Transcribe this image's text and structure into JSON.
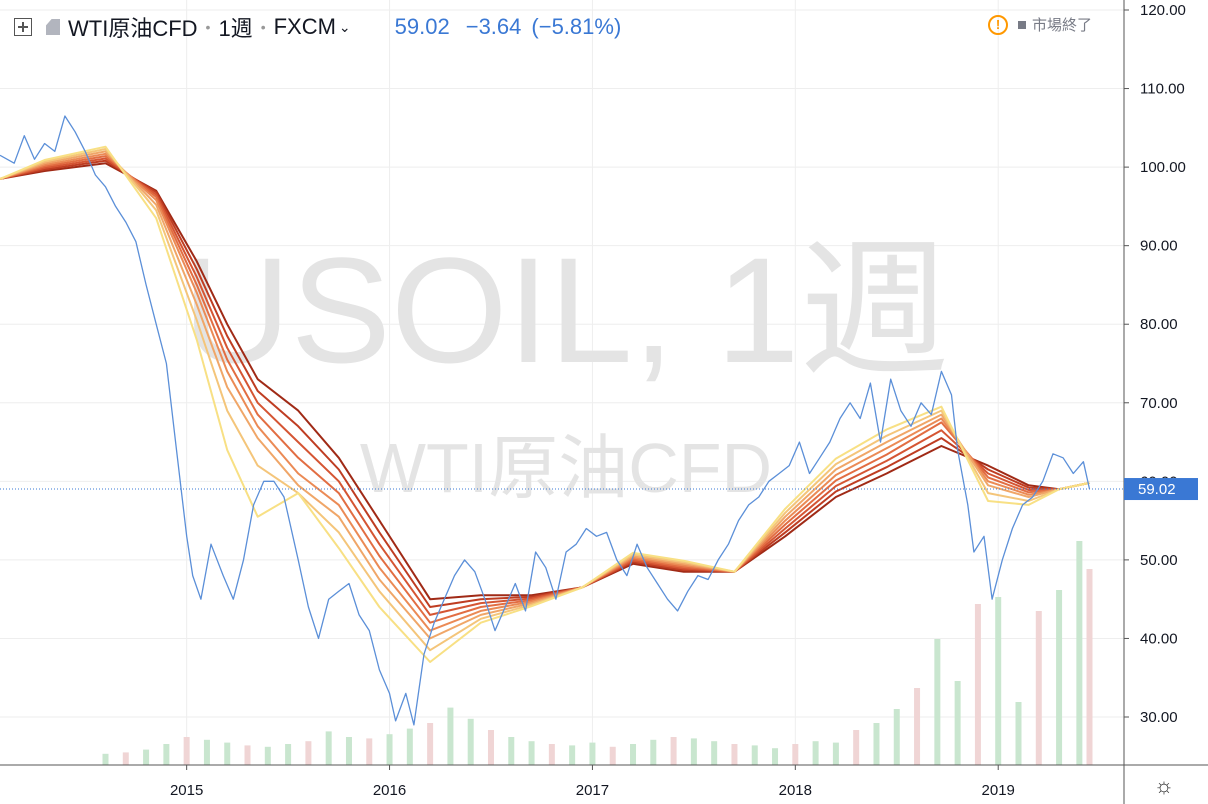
{
  "header": {
    "symbol_name": "WTI原油CFD",
    "interval": "1週",
    "exchange": "FXCM",
    "last_price": "59.02",
    "change": "−3.64",
    "change_percent": "(−5.81%)"
  },
  "status": {
    "text": "市場終了"
  },
  "watermark": {
    "main": "USOIL, 1週",
    "sub": "WTI原油CFD"
  },
  "colors": {
    "price_line": "#5b8fd8",
    "accent": "#3a78d4",
    "ribbon": [
      "#a02a16",
      "#bf3d22",
      "#d55533",
      "#e26d42",
      "#eb8a55",
      "#f0a668",
      "#f4c57a",
      "#f8e084"
    ],
    "volume_up": "#c9e6cf",
    "volume_down": "#f0d5d5"
  },
  "chart_data": {
    "type": "line",
    "x_tick_labels": [
      "2015",
      "2016",
      "2017",
      "2018",
      "2019"
    ],
    "y_tick_labels": [
      "120.00",
      "110.00",
      "100.00",
      "90.00",
      "80.00",
      "70.00",
      "60.00",
      "50.00",
      "40.00",
      "30.00"
    ],
    "ylim": [
      23,
      120
    ],
    "xlim": [
      2014.08,
      2019.62
    ],
    "last_value_label": "59.02",
    "price": [
      [
        2014.08,
        101.5
      ],
      [
        2014.15,
        100.5
      ],
      [
        2014.2,
        104
      ],
      [
        2014.25,
        101
      ],
      [
        2014.3,
        103
      ],
      [
        2014.35,
        102
      ],
      [
        2014.4,
        106.5
      ],
      [
        2014.45,
        104.5
      ],
      [
        2014.5,
        102
      ],
      [
        2014.55,
        99
      ],
      [
        2014.6,
        97.5
      ],
      [
        2014.65,
        95
      ],
      [
        2014.7,
        93
      ],
      [
        2014.75,
        90.5
      ],
      [
        2014.8,
        85
      ],
      [
        2014.85,
        80
      ],
      [
        2014.9,
        75
      ],
      [
        2014.95,
        64
      ],
      [
        2015.0,
        53
      ],
      [
        2015.03,
        48
      ],
      [
        2015.07,
        45
      ],
      [
        2015.12,
        52
      ],
      [
        2015.18,
        48
      ],
      [
        2015.23,
        45
      ],
      [
        2015.28,
        50
      ],
      [
        2015.33,
        57
      ],
      [
        2015.38,
        60
      ],
      [
        2015.43,
        60
      ],
      [
        2015.48,
        58
      ],
      [
        2015.55,
        50
      ],
      [
        2015.6,
        44
      ],
      [
        2015.65,
        40
      ],
      [
        2015.7,
        45
      ],
      [
        2015.75,
        46
      ],
      [
        2015.8,
        47
      ],
      [
        2015.85,
        43
      ],
      [
        2015.9,
        41
      ],
      [
        2015.95,
        36
      ],
      [
        2016.0,
        33
      ],
      [
        2016.03,
        29.5
      ],
      [
        2016.08,
        33
      ],
      [
        2016.12,
        29
      ],
      [
        2016.17,
        38
      ],
      [
        2016.22,
        42
      ],
      [
        2016.27,
        45
      ],
      [
        2016.32,
        48
      ],
      [
        2016.37,
        50
      ],
      [
        2016.42,
        48.5
      ],
      [
        2016.47,
        45
      ],
      [
        2016.52,
        41
      ],
      [
        2016.57,
        44
      ],
      [
        2016.62,
        47
      ],
      [
        2016.67,
        43.5
      ],
      [
        2016.72,
        51
      ],
      [
        2016.77,
        49
      ],
      [
        2016.82,
        45
      ],
      [
        2016.87,
        51
      ],
      [
        2016.92,
        52
      ],
      [
        2016.97,
        54
      ],
      [
        2017.02,
        53
      ],
      [
        2017.07,
        53.5
      ],
      [
        2017.12,
        50
      ],
      [
        2017.17,
        48
      ],
      [
        2017.22,
        52
      ],
      [
        2017.27,
        49
      ],
      [
        2017.32,
        47
      ],
      [
        2017.37,
        45
      ],
      [
        2017.42,
        43.5
      ],
      [
        2017.47,
        46
      ],
      [
        2017.52,
        48
      ],
      [
        2017.57,
        47.5
      ],
      [
        2017.62,
        50
      ],
      [
        2017.67,
        52
      ],
      [
        2017.72,
        55
      ],
      [
        2017.77,
        57
      ],
      [
        2017.82,
        58
      ],
      [
        2017.87,
        60
      ],
      [
        2017.92,
        61
      ],
      [
        2017.97,
        62
      ],
      [
        2018.02,
        65
      ],
      [
        2018.07,
        61
      ],
      [
        2018.12,
        63
      ],
      [
        2018.17,
        65
      ],
      [
        2018.22,
        68
      ],
      [
        2018.27,
        70
      ],
      [
        2018.32,
        68
      ],
      [
        2018.37,
        72.5
      ],
      [
        2018.42,
        65
      ],
      [
        2018.47,
        73
      ],
      [
        2018.52,
        69
      ],
      [
        2018.57,
        67
      ],
      [
        2018.62,
        70
      ],
      [
        2018.67,
        68.5
      ],
      [
        2018.72,
        74
      ],
      [
        2018.77,
        71
      ],
      [
        2018.8,
        64
      ],
      [
        2018.85,
        57
      ],
      [
        2018.88,
        51
      ],
      [
        2018.93,
        53
      ],
      [
        2018.97,
        45
      ],
      [
        2019.02,
        50
      ],
      [
        2019.07,
        54
      ],
      [
        2019.12,
        57
      ],
      [
        2019.17,
        58
      ],
      [
        2019.22,
        60
      ],
      [
        2019.27,
        63.5
      ],
      [
        2019.32,
        63
      ],
      [
        2019.37,
        61
      ],
      [
        2019.42,
        62.5
      ],
      [
        2019.45,
        59.02
      ]
    ],
    "ribbon_ma": [
      [
        [
          2014.08,
          98.5
        ],
        [
          2014.3,
          99.5
        ],
        [
          2014.6,
          100.5
        ],
        [
          2014.85,
          97
        ],
        [
          2015.05,
          88
        ],
        [
          2015.2,
          80
        ],
        [
          2015.35,
          73
        ],
        [
          2015.55,
          69
        ],
        [
          2015.75,
          63
        ],
        [
          2015.95,
          55
        ],
        [
          2016.2,
          45
        ],
        [
          2016.45,
          45.5
        ],
        [
          2016.7,
          45.5
        ],
        [
          2016.95,
          46.5
        ],
        [
          2017.2,
          49.5
        ],
        [
          2017.45,
          48.5
        ],
        [
          2017.7,
          48.5
        ],
        [
          2017.95,
          53
        ],
        [
          2018.2,
          58
        ],
        [
          2018.45,
          61
        ],
        [
          2018.72,
          64.5
        ],
        [
          2018.95,
          62
        ],
        [
          2019.15,
          59.5
        ],
        [
          2019.3,
          59
        ],
        [
          2019.45,
          59.8
        ]
      ],
      [
        [
          2014.08,
          98.5
        ],
        [
          2014.3,
          99.7
        ],
        [
          2014.6,
          100.8
        ],
        [
          2014.85,
          96.8
        ],
        [
          2015.05,
          87
        ],
        [
          2015.2,
          78.5
        ],
        [
          2015.35,
          71.5
        ],
        [
          2015.55,
          67
        ],
        [
          2015.75,
          61.5
        ],
        [
          2015.95,
          53.5
        ],
        [
          2016.2,
          44
        ],
        [
          2016.45,
          45
        ],
        [
          2016.7,
          45.3
        ],
        [
          2016.95,
          46.5
        ],
        [
          2017.2,
          49.7
        ],
        [
          2017.45,
          48.7
        ],
        [
          2017.7,
          48.5
        ],
        [
          2017.95,
          53.5
        ],
        [
          2018.2,
          58.7
        ],
        [
          2018.45,
          61.8
        ],
        [
          2018.72,
          65.5
        ],
        [
          2018.95,
          61.5
        ],
        [
          2019.15,
          59.2
        ],
        [
          2019.3,
          59
        ],
        [
          2019.45,
          59.8
        ]
      ],
      [
        [
          2014.08,
          98.5
        ],
        [
          2014.3,
          99.9
        ],
        [
          2014.6,
          101.1
        ],
        [
          2014.85,
          96.5
        ],
        [
          2015.05,
          86
        ],
        [
          2015.2,
          77
        ],
        [
          2015.35,
          70
        ],
        [
          2015.55,
          65
        ],
        [
          2015.75,
          60
        ],
        [
          2015.95,
          52
        ],
        [
          2016.2,
          43
        ],
        [
          2016.45,
          44.5
        ],
        [
          2016.7,
          45.1
        ],
        [
          2016.95,
          46.5
        ],
        [
          2017.2,
          49.9
        ],
        [
          2017.45,
          48.9
        ],
        [
          2017.7,
          48.5
        ],
        [
          2017.95,
          54
        ],
        [
          2018.2,
          59.4
        ],
        [
          2018.45,
          62.6
        ],
        [
          2018.72,
          66.5
        ],
        [
          2018.95,
          61
        ],
        [
          2019.15,
          58.9
        ],
        [
          2019.3,
          59
        ],
        [
          2019.45,
          59.8
        ]
      ],
      [
        [
          2014.08,
          98.5
        ],
        [
          2014.3,
          100.1
        ],
        [
          2014.6,
          101.4
        ],
        [
          2014.85,
          96.2
        ],
        [
          2015.05,
          85
        ],
        [
          2015.2,
          75.5
        ],
        [
          2015.35,
          68.5
        ],
        [
          2015.55,
          63
        ],
        [
          2015.75,
          58.5
        ],
        [
          2015.95,
          50.5
        ],
        [
          2016.2,
          42
        ],
        [
          2016.45,
          44
        ],
        [
          2016.7,
          44.9
        ],
        [
          2016.95,
          46.5
        ],
        [
          2017.2,
          50.1
        ],
        [
          2017.45,
          49.1
        ],
        [
          2017.7,
          48.5
        ],
        [
          2017.95,
          54.5
        ],
        [
          2018.2,
          60.1
        ],
        [
          2018.45,
          63.4
        ],
        [
          2018.72,
          67.5
        ],
        [
          2018.95,
          60.5
        ],
        [
          2019.15,
          58.6
        ],
        [
          2019.3,
          59
        ],
        [
          2019.45,
          59.8
        ]
      ],
      [
        [
          2014.08,
          98.5
        ],
        [
          2014.3,
          100.3
        ],
        [
          2014.6,
          101.7
        ],
        [
          2014.85,
          95.8
        ],
        [
          2015.05,
          84
        ],
        [
          2015.2,
          74
        ],
        [
          2015.35,
          67
        ],
        [
          2015.55,
          61
        ],
        [
          2015.75,
          57
        ],
        [
          2015.95,
          49
        ],
        [
          2016.2,
          41
        ],
        [
          2016.45,
          43.5
        ],
        [
          2016.7,
          44.7
        ],
        [
          2016.95,
          46.5
        ],
        [
          2017.2,
          50.3
        ],
        [
          2017.45,
          49.3
        ],
        [
          2017.7,
          48.5
        ],
        [
          2017.95,
          55
        ],
        [
          2018.2,
          60.8
        ],
        [
          2018.45,
          64.2
        ],
        [
          2018.72,
          68
        ],
        [
          2018.95,
          60
        ],
        [
          2019.15,
          58.3
        ],
        [
          2019.3,
          59
        ],
        [
          2019.45,
          59.8
        ]
      ],
      [
        [
          2014.08,
          98.5
        ],
        [
          2014.3,
          100.5
        ],
        [
          2014.6,
          102
        ],
        [
          2014.85,
          95.2
        ],
        [
          2015.05,
          82.5
        ],
        [
          2015.2,
          72
        ],
        [
          2015.35,
          65.5
        ],
        [
          2015.55,
          59.5
        ],
        [
          2015.75,
          55.5
        ],
        [
          2015.95,
          47.5
        ],
        [
          2016.2,
          40
        ],
        [
          2016.45,
          43
        ],
        [
          2016.7,
          44.5
        ],
        [
          2016.95,
          46.5
        ],
        [
          2017.2,
          50.5
        ],
        [
          2017.45,
          49.5
        ],
        [
          2017.7,
          48.5
        ],
        [
          2017.95,
          55.5
        ],
        [
          2018.2,
          61.5
        ],
        [
          2018.45,
          65
        ],
        [
          2018.72,
          68.5
        ],
        [
          2018.95,
          59.5
        ],
        [
          2019.15,
          58
        ],
        [
          2019.3,
          59
        ],
        [
          2019.45,
          59.8
        ]
      ],
      [
        [
          2014.08,
          98.5
        ],
        [
          2014.3,
          100.7
        ],
        [
          2014.6,
          102.3
        ],
        [
          2014.85,
          94.5
        ],
        [
          2015.05,
          80.5
        ],
        [
          2015.2,
          69
        ],
        [
          2015.35,
          62
        ],
        [
          2015.55,
          58.5
        ],
        [
          2015.75,
          53.5
        ],
        [
          2015.95,
          46
        ],
        [
          2016.2,
          38.5
        ],
        [
          2016.45,
          42.5
        ],
        [
          2016.7,
          44.3
        ],
        [
          2016.95,
          46.5
        ],
        [
          2017.2,
          50.7
        ],
        [
          2017.45,
          49.7
        ],
        [
          2017.7,
          48.5
        ],
        [
          2017.95,
          56
        ],
        [
          2018.2,
          62.2
        ],
        [
          2018.45,
          65.8
        ],
        [
          2018.72,
          69
        ],
        [
          2018.95,
          58.5
        ],
        [
          2019.15,
          57.5
        ],
        [
          2019.3,
          59
        ],
        [
          2019.45,
          59.8
        ]
      ],
      [
        [
          2014.08,
          98.5
        ],
        [
          2014.3,
          100.9
        ],
        [
          2014.6,
          102.6
        ],
        [
          2014.85,
          93.5
        ],
        [
          2015.05,
          78
        ],
        [
          2015.2,
          64
        ],
        [
          2015.35,
          55.5
        ],
        [
          2015.55,
          58.5
        ],
        [
          2015.75,
          51.5
        ],
        [
          2015.95,
          44
        ],
        [
          2016.2,
          37
        ],
        [
          2016.45,
          42
        ],
        [
          2016.7,
          44.1
        ],
        [
          2016.95,
          46.5
        ],
        [
          2017.2,
          50.9
        ],
        [
          2017.45,
          49.9
        ],
        [
          2017.7,
          48.5
        ],
        [
          2017.95,
          56.5
        ],
        [
          2018.2,
          62.9
        ],
        [
          2018.45,
          66.6
        ],
        [
          2018.72,
          69.5
        ],
        [
          2018.95,
          57.5
        ],
        [
          2019.15,
          57
        ],
        [
          2019.3,
          59
        ],
        [
          2019.45,
          59.8
        ]
      ]
    ],
    "volume": [
      [
        2014.6,
        0.8
      ],
      [
        2014.7,
        0.9
      ],
      [
        2014.8,
        1.1
      ],
      [
        2014.9,
        1.5
      ],
      [
        2015.0,
        2.0
      ],
      [
        2015.1,
        1.8
      ],
      [
        2015.2,
        1.6
      ],
      [
        2015.3,
        1.4
      ],
      [
        2015.4,
        1.3
      ],
      [
        2015.5,
        1.5
      ],
      [
        2015.6,
        1.7
      ],
      [
        2015.7,
        2.4
      ],
      [
        2015.8,
        2.0
      ],
      [
        2015.9,
        1.9
      ],
      [
        2016.0,
        2.2
      ],
      [
        2016.1,
        2.6
      ],
      [
        2016.2,
        3.0
      ],
      [
        2016.3,
        4.1
      ],
      [
        2016.4,
        3.3
      ],
      [
        2016.5,
        2.5
      ],
      [
        2016.6,
        2.0
      ],
      [
        2016.7,
        1.7
      ],
      [
        2016.8,
        1.5
      ],
      [
        2016.9,
        1.4
      ],
      [
        2017.0,
        1.6
      ],
      [
        2017.1,
        1.3
      ],
      [
        2017.2,
        1.5
      ],
      [
        2017.3,
        1.8
      ],
      [
        2017.4,
        2.0
      ],
      [
        2017.5,
        1.9
      ],
      [
        2017.6,
        1.7
      ],
      [
        2017.7,
        1.5
      ],
      [
        2017.8,
        1.4
      ],
      [
        2017.9,
        1.2
      ],
      [
        2018.0,
        1.5
      ],
      [
        2018.1,
        1.7
      ],
      [
        2018.2,
        1.6
      ],
      [
        2018.3,
        2.5
      ],
      [
        2018.4,
        3.0
      ],
      [
        2018.5,
        4.0
      ],
      [
        2018.6,
        5.5
      ],
      [
        2018.7,
        9.0
      ],
      [
        2018.8,
        6.0
      ],
      [
        2018.9,
        11.5
      ],
      [
        2019.0,
        12.0
      ],
      [
        2019.1,
        4.5
      ],
      [
        2019.2,
        11.0
      ],
      [
        2019.3,
        12.5
      ],
      [
        2019.4,
        16.0
      ],
      [
        2019.45,
        14.0
      ]
    ],
    "grid": true
  }
}
